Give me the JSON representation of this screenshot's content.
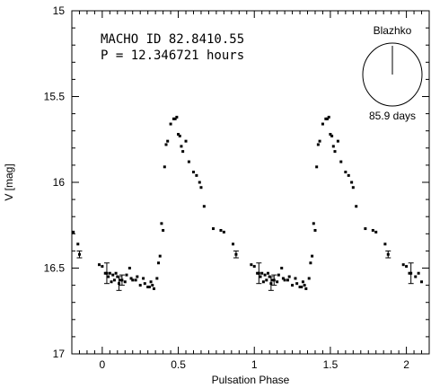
{
  "chart_data": {
    "type": "scatter",
    "title": "",
    "xlabel": "Pulsation Phase",
    "ylabel": "V [mag]",
    "xlim": [
      -0.2,
      2.15
    ],
    "ylim": [
      15,
      17
    ],
    "y_inverted": true,
    "grid": false,
    "x_ticks": [
      "0",
      "0.5",
      "1",
      "1.5",
      "2"
    ],
    "x_tick_values": [
      0,
      0.5,
      1,
      1.5,
      2
    ],
    "y_ticks": [
      "15",
      "15.5",
      "16",
      "16.5",
      "17"
    ],
    "y_tick_values": [
      15,
      15.5,
      16,
      16.5,
      17
    ],
    "annotations": {
      "id_line": "MACHO ID 82.8410.55",
      "period_line": "P = 12.346721 hours"
    },
    "inset": {
      "title": "Blazhko",
      "label": "85.9 days",
      "pointer_angle_deg": 0
    },
    "series": [
      {
        "x": [
          -0.19,
          -0.16,
          -0.15,
          -0.02,
          0.0,
          0.02,
          0.03,
          0.04,
          0.05,
          0.06,
          0.07,
          0.08,
          0.09,
          0.1,
          0.11,
          0.12,
          0.13,
          0.15,
          0.16,
          0.18,
          0.19,
          0.2,
          0.22,
          0.23,
          0.25,
          0.27,
          0.28,
          0.3,
          0.31,
          0.32,
          0.33,
          0.34,
          0.36,
          0.37,
          0.38,
          0.39,
          0.4,
          0.41,
          0.42,
          0.43,
          0.45,
          0.47,
          0.48,
          0.49,
          0.5,
          0.51,
          0.52,
          0.53,
          0.55,
          0.57,
          0.6,
          0.62,
          0.64,
          0.65,
          0.67,
          0.73,
          0.78,
          0.8,
          0.86,
          0.88
        ],
        "y": [
          16.29,
          16.36,
          16.42,
          16.48,
          16.49,
          16.53,
          16.53,
          16.55,
          16.53,
          16.58,
          16.54,
          16.57,
          16.53,
          16.55,
          16.59,
          16.57,
          16.57,
          16.58,
          16.54,
          16.5,
          16.56,
          16.57,
          16.57,
          16.55,
          16.6,
          16.56,
          16.59,
          16.61,
          16.61,
          16.58,
          16.6,
          16.62,
          16.56,
          16.47,
          16.43,
          16.24,
          16.28,
          15.91,
          15.78,
          15.76,
          15.66,
          15.63,
          15.63,
          15.62,
          15.72,
          15.73,
          15.79,
          15.82,
          15.76,
          15.88,
          15.94,
          15.96,
          16.0,
          16.03,
          16.14,
          16.27,
          16.28,
          16.29,
          16.36,
          16.42
        ],
        "yerr": [
          0,
          0,
          0.02,
          0,
          0,
          0,
          0.06,
          0,
          0,
          0,
          0,
          0,
          0,
          0,
          0.04,
          0,
          0.03,
          0,
          0,
          0,
          0,
          0,
          0,
          0,
          0,
          0,
          0,
          0,
          0,
          0,
          0,
          0,
          0,
          0,
          0,
          0,
          0,
          0,
          0,
          0,
          0,
          0,
          0,
          0,
          0,
          0,
          0,
          0,
          0,
          0,
          0,
          0,
          0,
          0,
          0,
          0,
          0,
          0,
          0,
          0.02
        ]
      },
      {
        "x": [
          0.98,
          1.0,
          1.02,
          1.03,
          1.04,
          1.05,
          1.06,
          1.07,
          1.08,
          1.09,
          1.1,
          1.11,
          1.12,
          1.13,
          1.15,
          1.16,
          1.18,
          1.19,
          1.2,
          1.22,
          1.23,
          1.25,
          1.27,
          1.28,
          1.3,
          1.31,
          1.32,
          1.33,
          1.34,
          1.36,
          1.37,
          1.38,
          1.39,
          1.4,
          1.41,
          1.42,
          1.43,
          1.45,
          1.47,
          1.48,
          1.49,
          1.5,
          1.51,
          1.52,
          1.53,
          1.55,
          1.57,
          1.6,
          1.62,
          1.64,
          1.65,
          1.67,
          1.73,
          1.78,
          1.8,
          1.86,
          1.88,
          1.98,
          2.0,
          2.02,
          2.03,
          2.06,
          2.08,
          2.1
        ],
        "y": [
          16.48,
          16.49,
          16.53,
          16.53,
          16.55,
          16.53,
          16.58,
          16.54,
          16.57,
          16.53,
          16.55,
          16.59,
          16.57,
          16.57,
          16.58,
          16.54,
          16.5,
          16.56,
          16.57,
          16.57,
          16.55,
          16.6,
          16.56,
          16.59,
          16.61,
          16.61,
          16.58,
          16.6,
          16.62,
          16.56,
          16.47,
          16.43,
          16.24,
          16.28,
          15.91,
          15.78,
          15.76,
          15.66,
          15.63,
          15.63,
          15.62,
          15.72,
          15.73,
          15.79,
          15.82,
          15.76,
          15.88,
          15.94,
          15.96,
          16.0,
          16.03,
          16.14,
          16.27,
          16.28,
          16.29,
          16.36,
          16.42,
          16.48,
          16.49,
          16.53,
          16.53,
          16.55,
          16.53,
          16.58
        ],
        "yerr": [
          0,
          0,
          0,
          0.06,
          0,
          0,
          0,
          0,
          0,
          0,
          0,
          0.04,
          0,
          0.03,
          0,
          0,
          0,
          0,
          0,
          0,
          0,
          0,
          0,
          0,
          0,
          0,
          0,
          0,
          0,
          0,
          0,
          0,
          0,
          0,
          0,
          0,
          0,
          0,
          0,
          0,
          0,
          0,
          0,
          0,
          0,
          0,
          0,
          0,
          0,
          0,
          0,
          0,
          0,
          0,
          0,
          0,
          0.02,
          0,
          0,
          0,
          0.06,
          0,
          0,
          0
        ]
      }
    ]
  }
}
